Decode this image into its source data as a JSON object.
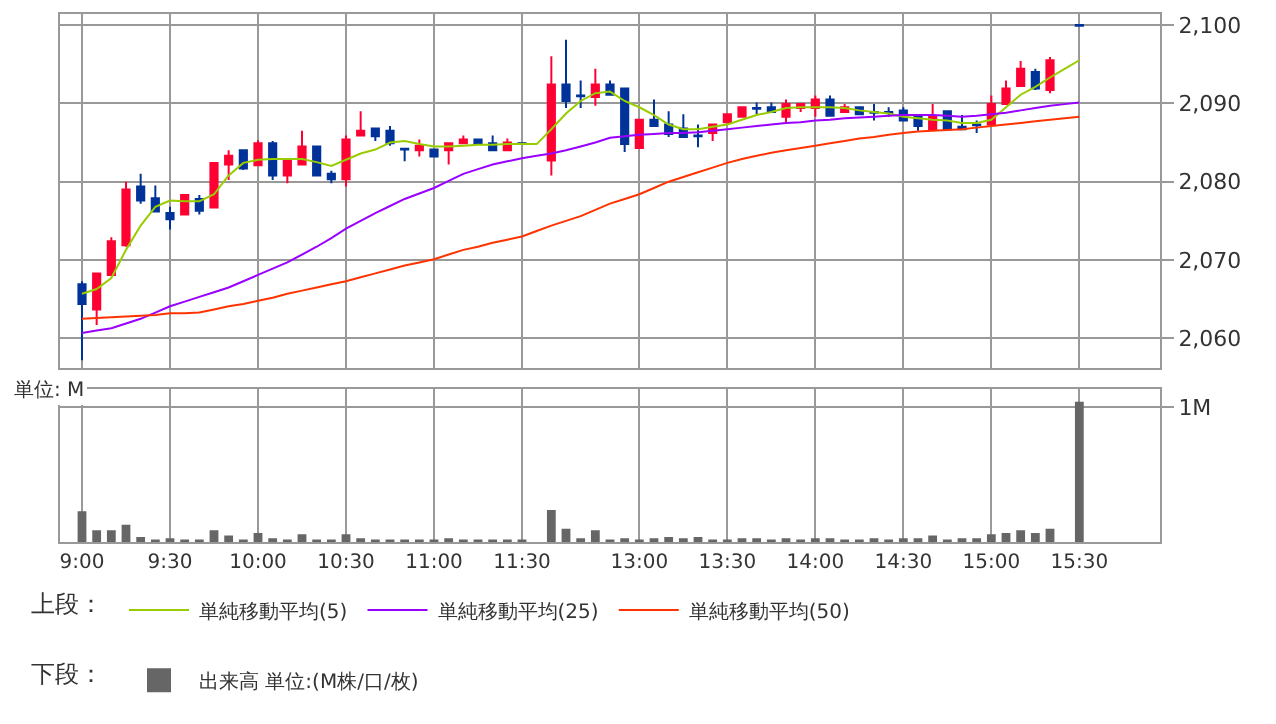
{
  "chart_data": [
    {
      "type": "candlestick",
      "categories": [
        null,
        "9:00",
        null,
        null,
        null,
        null,
        null,
        "9:30",
        null,
        null,
        null,
        null,
        null,
        "10:00",
        null,
        null,
        null,
        null,
        null,
        "10:30",
        null,
        null,
        null,
        null,
        null,
        "11:00",
        null,
        null,
        null,
        null,
        null,
        "11:30",
        null,
        null,
        null,
        null,
        null,
        null,
        null,
        "13:00",
        null,
        null,
        null,
        null,
        null,
        "13:30",
        null,
        null,
        null,
        null,
        null,
        "14:00",
        null,
        null,
        null,
        null,
        null,
        "14:30",
        null,
        null,
        null,
        null,
        null,
        "15:00",
        null,
        null,
        null,
        null,
        null,
        "15:30",
        null,
        null,
        null,
        null,
        null
      ],
      "ohlc": [
        null,
        [
          2066.9,
          2067.3,
          2057.2,
          2064.4
        ],
        [
          2063.7,
          2068.3,
          2061.7,
          2068.3
        ],
        [
          2068.1,
          2072.9,
          2068.1,
          2072.4
        ],
        [
          2071.9,
          2080.0,
          2071.7,
          2079.0
        ],
        [
          2079.4,
          2081.0,
          2077.2,
          2077.6
        ],
        [
          2077.9,
          2079.5,
          2076.2,
          2076.2
        ],
        [
          2076.0,
          2076.8,
          2073.9,
          2075.2
        ],
        [
          2075.8,
          2078.3,
          2075.8,
          2078.3
        ],
        [
          2077.8,
          2078.3,
          2075.8,
          2076.3
        ],
        [
          2076.7,
          2082.4,
          2076.7,
          2082.4
        ],
        [
          2082.2,
          2084.0,
          2080.2,
          2083.3
        ],
        [
          2084.0,
          2084.0,
          2081.5,
          2081.7
        ],
        [
          2082.1,
          2085.3,
          2082.1,
          2084.9
        ],
        [
          2084.9,
          2085.2,
          2080.2,
          2080.8
        ],
        [
          2080.8,
          2082.7,
          2079.8,
          2082.7
        ],
        [
          2082.2,
          2086.5,
          2082.2,
          2084.5
        ],
        [
          2084.5,
          2084.5,
          2080.8,
          2080.8
        ],
        [
          2081.0,
          2081.4,
          2079.8,
          2080.3
        ],
        [
          2080.3,
          2085.9,
          2079.4,
          2085.4
        ],
        [
          2085.9,
          2089.0,
          2085.9,
          2086.5
        ],
        [
          2086.8,
          2086.8,
          2085.2,
          2085.8
        ],
        [
          2086.5,
          2087.1,
          2084.6,
          2084.9
        ],
        [
          2084.2,
          2084.2,
          2082.6,
          2084.1
        ],
        [
          2084.0,
          2085.4,
          2083.2,
          2084.6
        ],
        [
          2084.1,
          2084.1,
          2083.2,
          2083.2
        ],
        [
          2084.0,
          2084.9,
          2082.2,
          2084.9
        ],
        [
          2084.9,
          2085.9,
          2084.9,
          2085.4
        ],
        [
          2085.4,
          2085.4,
          2084.8,
          2084.8
        ],
        [
          2084.9,
          2085.9,
          2084.0,
          2084.0
        ],
        [
          2084.0,
          2085.5,
          2084.0,
          2085.0
        ],
        [
          2084.9,
          2084.9,
          2084.8,
          2084.8
        ],
        null,
        [
          2082.7,
          2096.0,
          2080.8,
          2092.4
        ],
        [
          2092.4,
          2098.1,
          2089.4,
          2090.3
        ],
        [
          2091.0,
          2092.9,
          2089.4,
          2090.9
        ],
        [
          2090.8,
          2094.4,
          2089.7,
          2092.4
        ],
        [
          2092.4,
          2092.9,
          2091.1,
          2091.1
        ],
        [
          2091.9,
          2091.9,
          2083.8,
          2084.8
        ],
        [
          2084.3,
          2087.9,
          2084.3,
          2087.9
        ],
        [
          2087.9,
          2090.5,
          2087.1,
          2087.1
        ],
        [
          2087.3,
          2089.0,
          2085.7,
          2086.1
        ],
        [
          2086.8,
          2088.6,
          2085.7,
          2085.7
        ],
        [
          2085.9,
          2087.3,
          2084.4,
          2085.8
        ],
        [
          2086.2,
          2087.3,
          2085.2,
          2087.3
        ],
        [
          2087.6,
          2088.6,
          2087.6,
          2088.6
        ],
        [
          2088.3,
          2089.5,
          2088.3,
          2089.5
        ],
        [
          2089.4,
          2090.1,
          2088.6,
          2089.3
        ],
        [
          2089.5,
          2090.1,
          2088.9,
          2088.9
        ],
        [
          2088.3,
          2090.5,
          2087.5,
          2089.9
        ],
        [
          2089.4,
          2089.9,
          2088.9,
          2089.9
        ],
        [
          2089.4,
          2091.0,
          2088.3,
          2090.5
        ],
        [
          2090.5,
          2091.0,
          2088.4,
          2088.4
        ],
        [
          2088.9,
          2089.9,
          2088.9,
          2089.5
        ],
        [
          2089.5,
          2089.5,
          2088.6,
          2088.6
        ],
        [
          2088.9,
          2089.9,
          2087.8,
          2088.8
        ],
        [
          2088.9,
          2089.5,
          2088.3,
          2088.8
        ],
        [
          2089.1,
          2089.5,
          2087.8,
          2087.8
        ],
        [
          2088.3,
          2088.3,
          2086.5,
          2087.1
        ],
        [
          2086.6,
          2089.9,
          2086.6,
          2088.3
        ],
        [
          2089.0,
          2089.0,
          2086.7,
          2086.7
        ],
        [
          2087.0,
          2088.5,
          2086.7,
          2086.7
        ],
        [
          2087.3,
          2087.8,
          2086.2,
          2087.2
        ],
        [
          2087.3,
          2091.0,
          2087.3,
          2089.9
        ],
        [
          2089.9,
          2092.9,
          2089.9,
          2091.9
        ],
        [
          2092.2,
          2095.4,
          2092.2,
          2094.4
        ],
        [
          2094.0,
          2094.4,
          2091.7,
          2091.9
        ],
        [
          2091.7,
          2095.9,
          2091.3,
          2095.5
        ],
        null,
        [
          2100.0,
          2100.0,
          2099.9,
          2099.9
        ],
        null,
        null,
        null,
        null,
        null
      ],
      "colors": [
        null,
        "#003399",
        "#ff0033",
        "#ff0033",
        "#ff0033",
        "#003399",
        "#003399",
        "#003399",
        "#ff0033",
        "#003399",
        "#ff0033",
        "#ff0033",
        "#003399",
        "#ff0033",
        "#003399",
        "#ff0033",
        "#ff0033",
        "#003399",
        "#003399",
        "#ff0033",
        "#ff0033",
        "#003399",
        "#003399",
        "#003399",
        "#ff0033",
        "#003399",
        "#ff0033",
        "#ff0033",
        "#003399",
        "#003399",
        "#ff0033",
        "#003399",
        null,
        "#ff0033",
        "#003399",
        "#003399",
        "#ff0033",
        "#003399",
        "#003399",
        "#ff0033",
        "#003399",
        "#003399",
        "#003399",
        "#003399",
        "#ff0033",
        "#ff0033",
        "#ff0033",
        "#003399",
        "#003399",
        "#ff0033",
        "#ff0033",
        "#ff0033",
        "#003399",
        "#ff0033",
        "#003399",
        "#003399",
        "#003399",
        "#003399",
        "#003399",
        "#ff0033",
        "#003399",
        "#003399",
        "#003399",
        "#ff0033",
        "#ff0033",
        "#ff0033",
        "#003399",
        "#ff0033",
        null,
        "#003399",
        null,
        null,
        null,
        null,
        null
      ],
      "series": [
        {
          "name": "単純移動平均(5)",
          "type": "line",
          "color": "#99cc00",
          "values": [
            null,
            2065.7,
            2066.3,
            2067.7,
            2071.3,
            2074.4,
            2076.8,
            2077.6,
            2077.5,
            2077.5,
            2078.4,
            2080.8,
            2082.4,
            2082.8,
            2082.9,
            2082.9,
            2082.9,
            2082.5,
            2082.0,
            2082.8,
            2083.6,
            2084.1,
            2085.0,
            2085.2,
            2084.8,
            2084.5,
            2084.5,
            2084.6,
            2084.7,
            2084.7,
            2084.8,
            2084.8,
            2084.8,
            2086.7,
            2088.7,
            2090.3,
            2091.3,
            2091.5,
            2090.3,
            2089.5,
            2088.5,
            2087.3,
            2086.7,
            2086.7,
            2087.0,
            2087.3,
            2087.9,
            2088.5,
            2088.9,
            2089.4,
            2089.5,
            2089.5,
            2089.5,
            2089.4,
            2089.1,
            2088.9,
            2088.7,
            2088.3,
            2088.1,
            2087.9,
            2087.8,
            2087.5,
            2087.5,
            2087.9,
            2089.5,
            2091.1,
            2092.1,
            2093.3,
            2094.4,
            2095.5,
            null,
            null,
            null,
            null,
            null
          ]
        },
        {
          "name": "単純移動平均(25)",
          "type": "line",
          "color": "#9900ff",
          "values": [
            null,
            2060.7,
            2061.0,
            2061.3,
            2061.9,
            2062.5,
            2063.3,
            2064.1,
            2064.7,
            2065.3,
            2065.9,
            2066.5,
            2067.3,
            2068.1,
            2068.9,
            2069.7,
            2070.7,
            2071.7,
            2072.8,
            2074.0,
            2075.0,
            2076.0,
            2076.9,
            2077.8,
            2078.5,
            2079.2,
            2080.1,
            2081.0,
            2081.6,
            2082.2,
            2082.6,
            2083.0,
            2083.3,
            2083.6,
            2084.0,
            2084.5,
            2085.0,
            2085.6,
            2085.8,
            2086.0,
            2086.1,
            2086.2,
            2086.2,
            2086.3,
            2086.5,
            2086.7,
            2086.9,
            2087.1,
            2087.3,
            2087.5,
            2087.6,
            2087.8,
            2087.9,
            2088.1,
            2088.2,
            2088.3,
            2088.4,
            2088.5,
            2088.5,
            2088.5,
            2088.4,
            2088.3,
            2088.4,
            2088.6,
            2088.8,
            2089.1,
            2089.4,
            2089.7,
            2089.9,
            2090.1,
            null,
            null,
            null,
            null,
            null
          ]
        },
        {
          "name": "単純移動平均(50)",
          "type": "line",
          "color": "#ff3300",
          "values": [
            null,
            2062.5,
            2062.6,
            2062.7,
            2062.8,
            2062.9,
            2063.0,
            2063.2,
            2063.2,
            2063.3,
            2063.7,
            2064.1,
            2064.4,
            2064.8,
            2065.2,
            2065.7,
            2066.1,
            2066.5,
            2066.9,
            2067.3,
            2067.8,
            2068.3,
            2068.8,
            2069.3,
            2069.7,
            2070.1,
            2070.7,
            2071.3,
            2071.7,
            2072.2,
            2072.6,
            2073.0,
            2073.7,
            2074.4,
            2075.0,
            2075.6,
            2076.4,
            2077.2,
            2077.8,
            2078.4,
            2079.2,
            2080.0,
            2080.6,
            2081.2,
            2081.8,
            2082.4,
            2082.9,
            2083.3,
            2083.7,
            2084.0,
            2084.3,
            2084.6,
            2084.9,
            2085.2,
            2085.5,
            2085.7,
            2086.0,
            2086.2,
            2086.4,
            2086.5,
            2086.6,
            2086.7,
            2086.9,
            2087.1,
            2087.3,
            2087.5,
            2087.7,
            2087.9,
            2088.1,
            2088.3,
            null,
            null,
            null,
            null,
            null
          ]
        }
      ],
      "ylim": [
        2056.2,
        2101.4
      ],
      "yticks": [
        {
          "value": 2060,
          "label": "2,060"
        },
        {
          "value": 2070,
          "label": "2,070"
        },
        {
          "value": 2080,
          "label": "2,080"
        },
        {
          "value": 2090,
          "label": "2,090"
        },
        {
          "value": 2100,
          "label": "2,100"
        }
      ],
      "grid": true,
      "legend": "bottom",
      "legend_title": "上段：",
      "tick_labels": "y",
      "marker": "none",
      "line_style": "solid"
    },
    {
      "type": "bar",
      "categories": [
        null,
        "9:00",
        null,
        null,
        null,
        null,
        null,
        "9:30",
        null,
        null,
        null,
        null,
        null,
        "10:00",
        null,
        null,
        null,
        null,
        null,
        "10:30",
        null,
        null,
        null,
        null,
        null,
        "11:00",
        null,
        null,
        null,
        null,
        null,
        "11:30",
        null,
        null,
        null,
        null,
        null,
        null,
        null,
        "13:00",
        null,
        null,
        null,
        null,
        null,
        "13:30",
        null,
        null,
        null,
        null,
        null,
        "14:00",
        null,
        null,
        null,
        null,
        null,
        "14:30",
        null,
        null,
        null,
        null,
        null,
        "15:00",
        null,
        null,
        null,
        null,
        null,
        "15:30",
        null,
        null,
        null,
        null,
        null
      ],
      "series": [
        {
          "name": "出来高 単位:(M株/口/枚)",
          "color": "#666666",
          "values": [
            null,
            0.23,
            0.09,
            0.09,
            0.13,
            0.04,
            0.02,
            0.03,
            0.02,
            0.02,
            0.09,
            0.05,
            0.02,
            0.07,
            0.03,
            0.02,
            0.06,
            0.02,
            0.02,
            0.06,
            0.03,
            0.01,
            0.02,
            0.02,
            0.02,
            0.02,
            0.03,
            0.02,
            0.02,
            0.02,
            0.02,
            0.01,
            null,
            0.24,
            0.1,
            0.03,
            0.09,
            0.02,
            0.03,
            0.02,
            0.03,
            0.04,
            0.03,
            0.04,
            0.01,
            0.01,
            0.03,
            0.03,
            0.01,
            0.03,
            0.01,
            0.03,
            0.03,
            0.01,
            0.01,
            0.03,
            0.01,
            0.03,
            0.03,
            0.05,
            0.02,
            0.03,
            0.03,
            0.06,
            0.07,
            0.09,
            0.07,
            0.1,
            null,
            1.04,
            null,
            null,
            null,
            null,
            null
          ]
        }
      ],
      "ylim": [
        0,
        1.13
      ],
      "yticks": [
        {
          "value": 1,
          "label": "1M"
        }
      ],
      "grid": true,
      "legend": "bottom",
      "legend_title": "下段：",
      "annotations": [
        "単位: M"
      ]
    }
  ]
}
